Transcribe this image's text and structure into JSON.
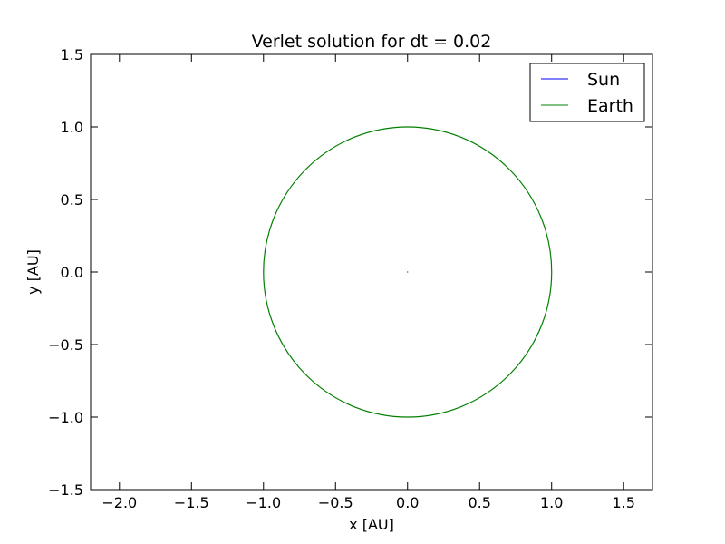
{
  "chart_data": {
    "type": "line",
    "title": "Verlet solution for dt = 0.02",
    "xlabel": "x [AU]",
    "ylabel": "y [AU]",
    "xlim": [
      -2.2,
      1.7
    ],
    "ylim": [
      -1.5,
      1.5
    ],
    "xticks": [
      -2.0,
      -1.5,
      -1.0,
      -0.5,
      0.0,
      0.5,
      1.0,
      1.5
    ],
    "xtick_labels": [
      "−2.0",
      "−1.5",
      "−1.0",
      "−0.5",
      "0.0",
      "0.5",
      "1.0",
      "1.5"
    ],
    "yticks": [
      1.5,
      1.0,
      0.5,
      0.0,
      -0.5,
      -1.0,
      -1.5
    ],
    "ytick_labels": [
      "1.5",
      "1.0",
      "0.5",
      "0.0",
      "−0.5",
      "−1.0",
      "−1.5"
    ],
    "grid": false,
    "legend_position": "top-right",
    "series": [
      {
        "name": "Sun",
        "color": "#0000ff",
        "shape": "point",
        "x": [
          0.0
        ],
        "y": [
          0.0
        ]
      },
      {
        "name": "Earth",
        "color": "#008000",
        "shape": "circle",
        "center": [
          0.0,
          0.0
        ],
        "radius": 1.0
      }
    ]
  }
}
